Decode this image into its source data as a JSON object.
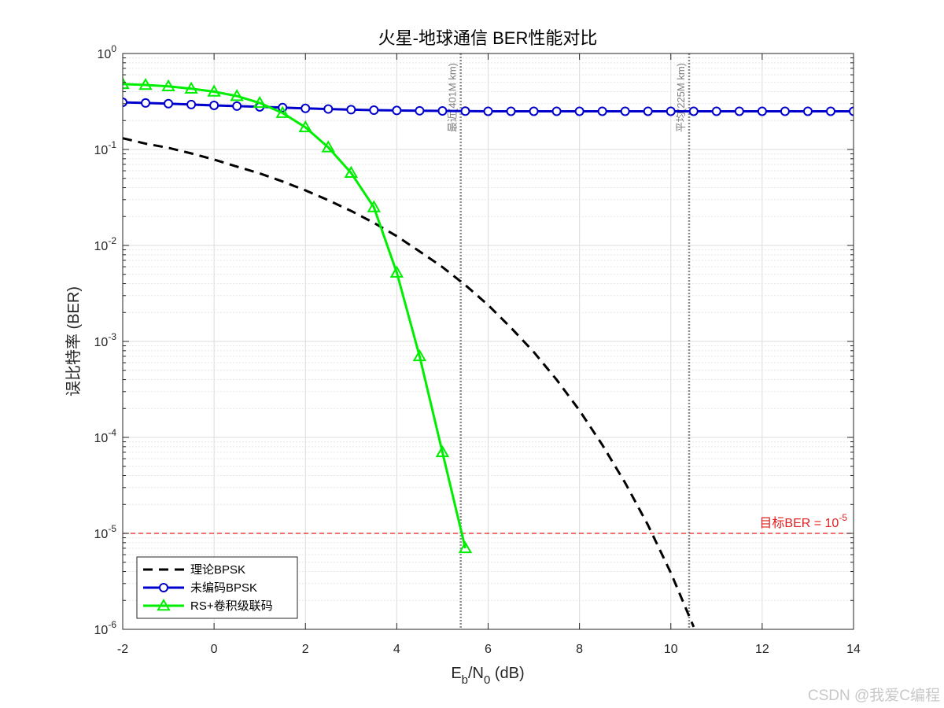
{
  "chart_data": {
    "type": "line",
    "title": "火星-地球通信 BER性能对比",
    "xlabel_main": "E",
    "xlabel_sub1": "b",
    "xlabel_mid": "/N",
    "xlabel_sub2": "0",
    "xlabel_tail": " (dB)",
    "ylabel": "误比特率 (BER)",
    "xlim": [
      -2,
      14
    ],
    "ylim": [
      1e-06,
      1
    ],
    "yscale": "log",
    "grid": true,
    "minor_grid": true,
    "x_ticks": [
      -2,
      0,
      2,
      4,
      6,
      8,
      10,
      12,
      14
    ],
    "y_tick_exponents": [
      "0",
      "-1",
      "-2",
      "-3",
      "-4",
      "-5",
      "-6"
    ],
    "y_tick_base": "10",
    "series": [
      {
        "name": "理论BPSK",
        "color": "#000000",
        "style": "dashed",
        "marker": "none",
        "x": [
          -2,
          -1.5,
          -1,
          -0.5,
          0,
          0.5,
          1,
          1.5,
          2,
          2.5,
          3,
          3.5,
          4,
          4.5,
          5,
          5.5,
          6,
          6.5,
          7,
          7.5,
          8,
          8.5,
          9,
          9.5,
          10,
          10.5
        ],
        "values": [
          0.131,
          0.115,
          0.104,
          0.091,
          0.0786,
          0.0663,
          0.0563,
          0.0464,
          0.0375,
          0.0296,
          0.0229,
          0.0172,
          0.0125,
          0.00867,
          0.00595,
          0.00386,
          0.00239,
          0.00139,
          0.000773,
          0.000399,
          0.000191,
          8.34e-05,
          3.36e-05,
          1.22e-05,
          3.87e-06,
          1.06e-06
        ]
      },
      {
        "name": "未编码BPSK",
        "color": "#0000cd",
        "style": "solid",
        "marker": "circle",
        "x": [
          -2,
          -1.5,
          -1,
          -0.5,
          0,
          0.5,
          1,
          1.5,
          2,
          2.5,
          3,
          3.5,
          4,
          4.5,
          5,
          5.5,
          6,
          6.5,
          7,
          7.5,
          8,
          8.5,
          9,
          9.5,
          10,
          10.5,
          11,
          11.5,
          12,
          12.5,
          13,
          13.5,
          14
        ],
        "values": [
          0.31,
          0.305,
          0.3,
          0.294,
          0.288,
          0.283,
          0.278,
          0.273,
          0.268,
          0.264,
          0.26,
          0.257,
          0.255,
          0.253,
          0.252,
          0.251,
          0.25,
          0.25,
          0.25,
          0.25,
          0.25,
          0.25,
          0.25,
          0.25,
          0.25,
          0.25,
          0.25,
          0.25,
          0.25,
          0.25,
          0.25,
          0.25,
          0.25
        ]
      },
      {
        "name": "RS+卷积级联码",
        "color": "#00ee00",
        "style": "solid",
        "marker": "triangle",
        "x": [
          -2,
          -1.5,
          -1,
          -0.5,
          0,
          0.5,
          1,
          1.5,
          2,
          2.5,
          3,
          3.5,
          4,
          4.5,
          5,
          5.5
        ],
        "values": [
          0.48,
          0.47,
          0.455,
          0.43,
          0.4,
          0.36,
          0.305,
          0.24,
          0.17,
          0.105,
          0.057,
          0.025,
          0.0052,
          0.0007,
          7e-05,
          7e-06
        ]
      }
    ],
    "vertical_lines": [
      {
        "x": 5.4,
        "label": "最近(401M km)"
      },
      {
        "x": 10.4,
        "label": "平均(225M km)"
      }
    ],
    "target_line": {
      "y": 1e-05,
      "label_prefix": "目标BER = 10",
      "label_exp": "-5",
      "color": "#e02020"
    },
    "legend_position": "bottom-left"
  },
  "watermark": "CSDN @我爱C编程"
}
